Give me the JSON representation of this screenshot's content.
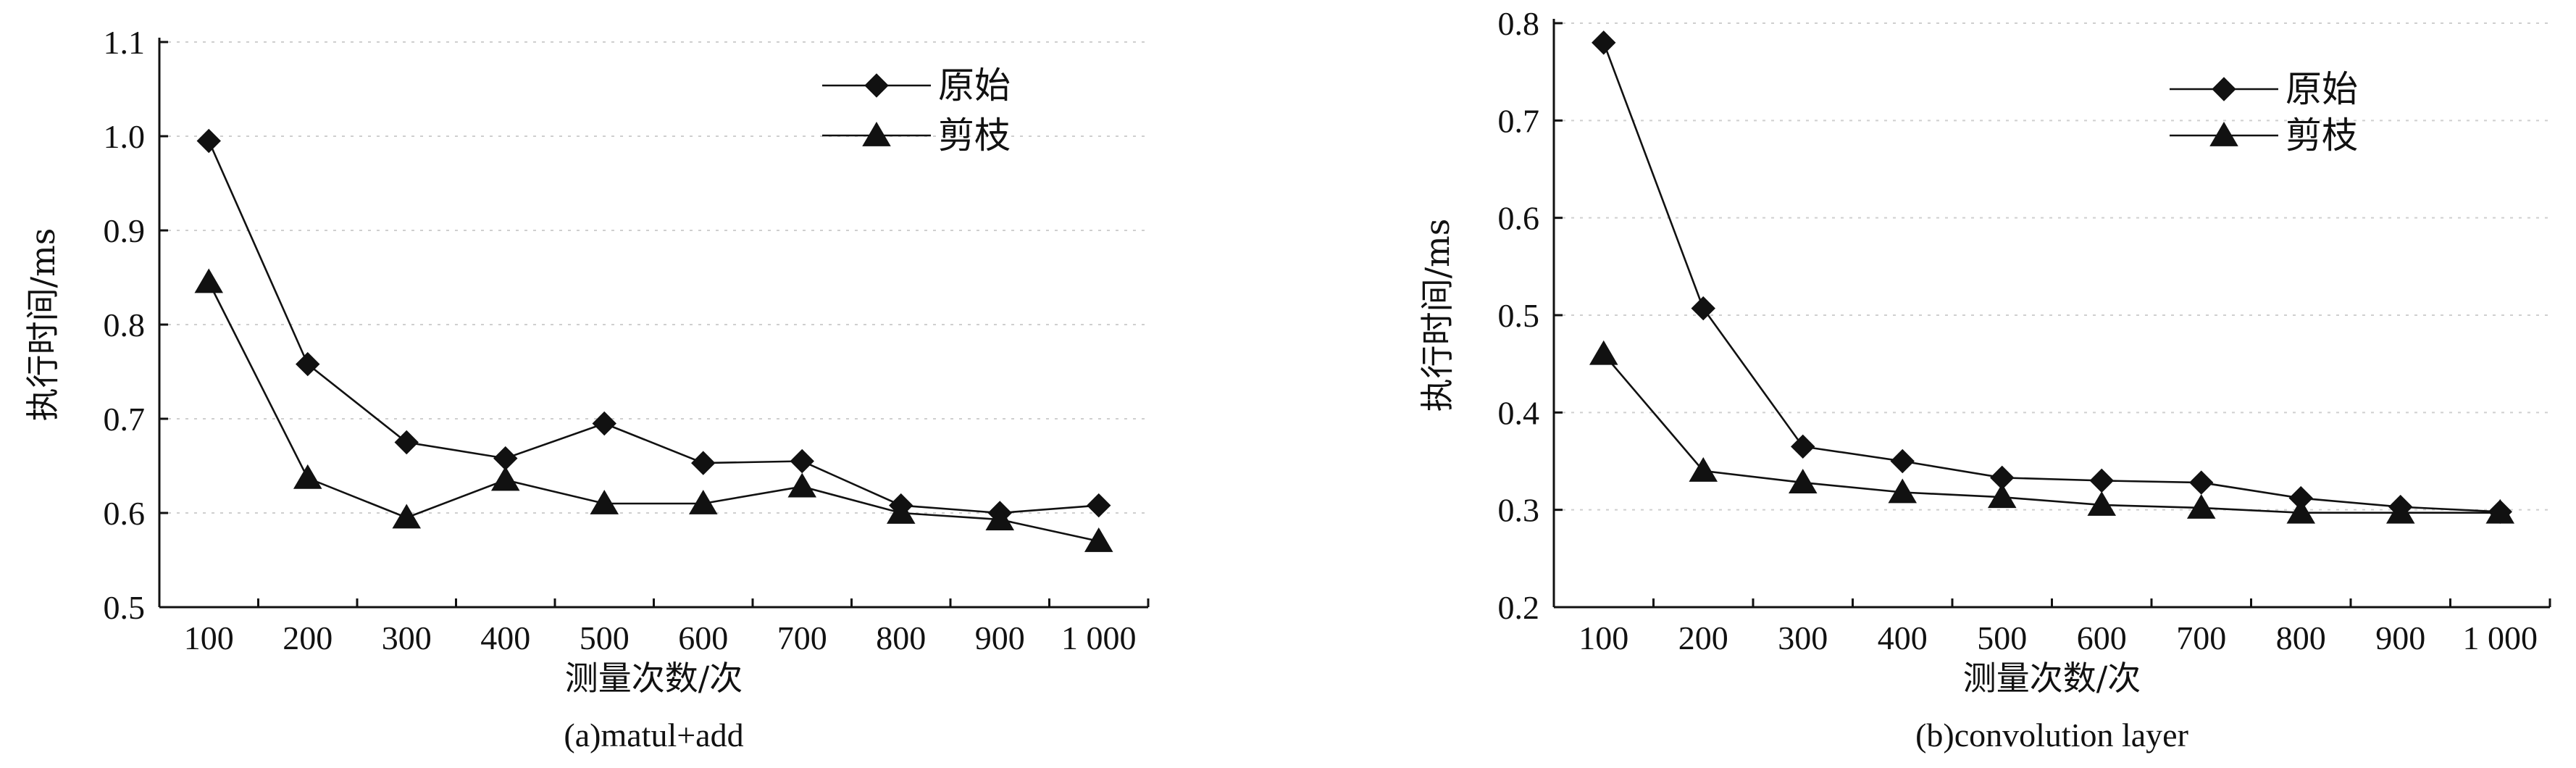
{
  "chart_data": [
    {
      "type": "line",
      "caption": "(a)matul+add",
      "xlabel": "测量次数/次",
      "ylabel": "执行时间/ms",
      "categories": [
        "100",
        "200",
        "300",
        "400",
        "500",
        "600",
        "700",
        "800",
        "900",
        "1 000"
      ],
      "ylim": [
        0.5,
        1.1
      ],
      "yticks": [
        "0.5",
        "0.6",
        "0.7",
        "0.8",
        "0.9",
        "1.0",
        "1.1"
      ],
      "grid": "horizontal dashed, light gray",
      "legend_position": "top-right",
      "series": [
        {
          "name": "原始",
          "marker": "diamond",
          "values": [
            0.995,
            0.758,
            0.675,
            0.658,
            0.695,
            0.653,
            0.655,
            0.608,
            0.6,
            0.608
          ]
        },
        {
          "name": "剪枝",
          "marker": "triangle",
          "values": [
            0.845,
            0.637,
            0.595,
            0.635,
            0.61,
            0.61,
            0.628,
            0.6,
            0.593,
            0.57
          ]
        }
      ]
    },
    {
      "type": "line",
      "caption": "(b)convolution layer",
      "xlabel": "测量次数/次",
      "ylabel": "执行时间/ms",
      "categories": [
        "100",
        "200",
        "300",
        "400",
        "500",
        "600",
        "700",
        "800",
        "900",
        "1 000"
      ],
      "ylim": [
        0.2,
        0.8
      ],
      "yticks": [
        "0.2",
        "0.3",
        "0.4",
        "0.5",
        "0.6",
        "0.7",
        "0.8"
      ],
      "grid": "horizontal dashed, light gray",
      "legend_position": "top-right",
      "series": [
        {
          "name": "原始",
          "marker": "diamond",
          "values": [
            0.78,
            0.507,
            0.365,
            0.35,
            0.333,
            0.33,
            0.328,
            0.312,
            0.303,
            0.298
          ]
        },
        {
          "name": "剪枝",
          "marker": "triangle",
          "values": [
            0.46,
            0.34,
            0.328,
            0.318,
            0.313,
            0.305,
            0.302,
            0.297,
            0.297,
            0.297
          ]
        }
      ]
    }
  ]
}
